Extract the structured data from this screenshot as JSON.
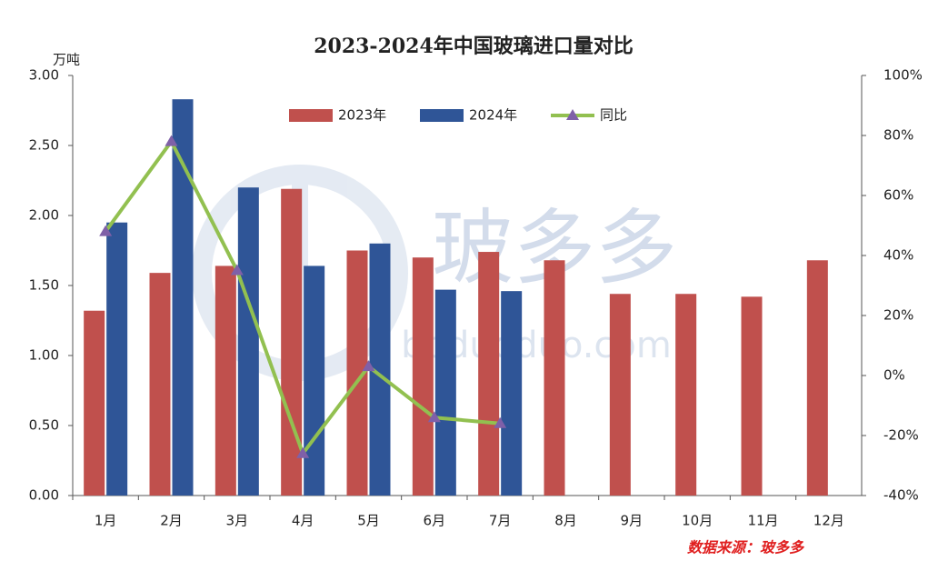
{
  "chart_data": {
    "type": "bar",
    "title": "2023-2024年中国玻璃进口量对比",
    "y_unit": "万吨",
    "source": "数据来源：玻多多",
    "watermark": [
      "玻多多",
      "boduoduo.com"
    ],
    "categories": [
      "1月",
      "2月",
      "3月",
      "4月",
      "5月",
      "6月",
      "7月",
      "8月",
      "9月",
      "10月",
      "11月",
      "12月"
    ],
    "series": [
      {
        "name": "2023年",
        "type": "bar",
        "color": "#c0504d",
        "values": [
          1.32,
          1.59,
          1.64,
          2.19,
          1.75,
          1.7,
          1.74,
          1.68,
          1.44,
          1.44,
          1.42,
          1.68
        ]
      },
      {
        "name": "2024年",
        "type": "bar",
        "color": "#2f5597",
        "values": [
          1.95,
          2.83,
          2.2,
          1.64,
          1.8,
          1.47,
          1.46,
          null,
          null,
          null,
          null,
          null
        ]
      },
      {
        "name": "同比",
        "type": "line",
        "axis": "y2",
        "color": "#92c050",
        "marker_color": "#7f60a8",
        "values": [
          48,
          78,
          35,
          -26,
          3,
          -14,
          -16,
          null,
          null,
          null,
          null,
          null
        ]
      }
    ],
    "ylim": [
      0,
      3
    ],
    "yticks": [
      {
        "value": 0,
        "label": "0.00"
      },
      {
        "value": 0.5,
        "label": "0.50"
      },
      {
        "value": 1,
        "label": "1.00"
      },
      {
        "value": 1.5,
        "label": "1.50"
      },
      {
        "value": 2,
        "label": "2.00"
      },
      {
        "value": 2.5,
        "label": "2.50"
      },
      {
        "value": 3,
        "label": "3.00"
      }
    ],
    "y2lim": [
      -40,
      100
    ],
    "y2ticks": [
      {
        "value": -40,
        "label": "-40%"
      },
      {
        "value": -20,
        "label": "-20%"
      },
      {
        "value": 0,
        "label": "0%"
      },
      {
        "value": 20,
        "label": "20%"
      },
      {
        "value": 40,
        "label": "40%"
      },
      {
        "value": 60,
        "label": "60%"
      },
      {
        "value": 80,
        "label": "80%"
      },
      {
        "value": 100,
        "label": "100%"
      }
    ],
    "grid": false,
    "legend": "top"
  }
}
